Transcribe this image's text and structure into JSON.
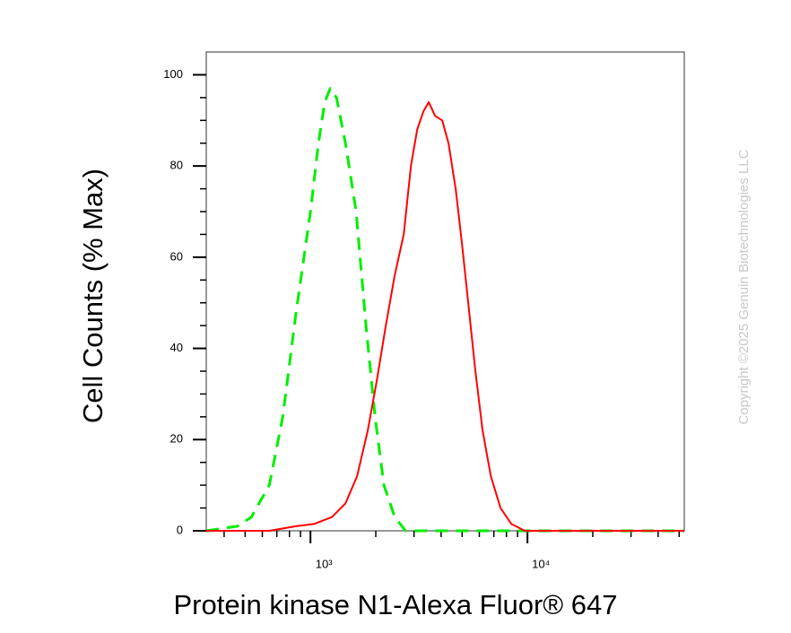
{
  "chart_data": {
    "type": "line",
    "x_label": "Protein kinase N1-Alexa Fluor® 647",
    "y_label": "Cell Counts (% Max)",
    "watermark": "Copyright ©2025 Genuin Biotechnologies LLC",
    "x_log": true,
    "xlim": [
      331,
      52800
    ],
    "xticks": [
      {
        "value": 1000,
        "label": "10³"
      },
      {
        "value": 10000,
        "label": "10⁴"
      }
    ],
    "xminorticks": [
      400,
      500,
      600,
      700,
      800,
      900,
      2000,
      3000,
      4000,
      5000,
      6000,
      7000,
      8000,
      9000,
      20000,
      30000,
      40000,
      50000
    ],
    "ylim": [
      0,
      105
    ],
    "yticks": [
      0,
      20,
      40,
      60,
      80,
      100
    ],
    "yminorticks": [
      5,
      10,
      15,
      25,
      30,
      35,
      45,
      50,
      55,
      65,
      70,
      75,
      85,
      90,
      95
    ],
    "series": [
      {
        "color": "#00ee00",
        "dashed": true,
        "x": [
          331,
          462,
          534,
          646,
          745,
          859,
          1000,
          1089,
          1164,
          1233,
          1318,
          1449,
          1624,
          1803,
          1985,
          2181,
          2445,
          2742,
          52800
        ],
        "values": [
          0,
          1,
          3,
          10,
          25,
          48,
          70,
          85,
          94,
          97,
          95,
          85,
          70,
          45,
          25,
          10,
          3,
          0,
          0
        ]
      },
      {
        "color": "#ff0000",
        "dashed": false,
        "x": [
          331,
          646,
          859,
          1039,
          1256,
          1449,
          1640,
          1837,
          2022,
          2224,
          2445,
          2691,
          2904,
          3105,
          3318,
          3510,
          3752,
          4046,
          4327,
          4670,
          4992,
          5335,
          5754,
          6213,
          6776,
          7516,
          8430,
          9730,
          52800
        ],
        "values": [
          0,
          0,
          1,
          1.5,
          3,
          6,
          12,
          22,
          33,
          45,
          56,
          65,
          80,
          88,
          92,
          94,
          91,
          90,
          85,
          75,
          63,
          50,
          35,
          22,
          12,
          5,
          1.5,
          0,
          0
        ]
      }
    ]
  }
}
